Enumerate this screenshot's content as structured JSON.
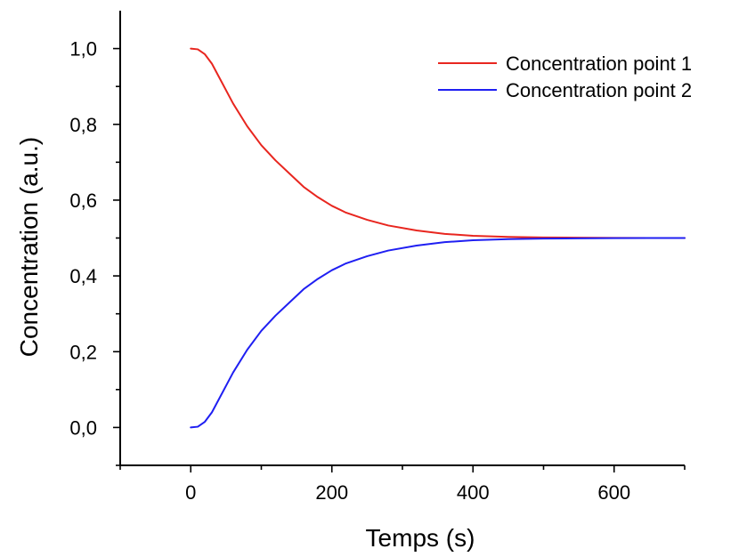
{
  "chart_data": {
    "type": "line",
    "title": "",
    "xlabel": "Temps (s)",
    "ylabel": "Concentration (a.u.)",
    "xlim": [
      -100,
      700
    ],
    "ylim": [
      -0.1,
      1.1
    ],
    "x_ticks": [
      0,
      200,
      400,
      600
    ],
    "x_tick_labels": [
      "0",
      "200",
      "400",
      "600"
    ],
    "x_minor_ticks": [
      -100,
      100,
      300,
      500,
      700
    ],
    "y_ticks": [
      0.0,
      0.2,
      0.4,
      0.6,
      0.8,
      1.0
    ],
    "y_tick_labels": [
      "0,0",
      "0,2",
      "0,4",
      "0,6",
      "0,8",
      "1,0"
    ],
    "y_minor_ticks": [
      -0.1,
      0.1,
      0.3,
      0.5,
      0.7,
      0.9
    ],
    "grid": false,
    "legend_position": "top-right",
    "series": [
      {
        "name": "Concentration point 1",
        "color": "#e8261f",
        "x": [
          0,
          10,
          20,
          30,
          40,
          60,
          80,
          100,
          120,
          140,
          160,
          180,
          200,
          220,
          250,
          280,
          320,
          360,
          400,
          450,
          500,
          550,
          600,
          650,
          700
        ],
        "y": [
          1.0,
          0.998,
          0.985,
          0.96,
          0.925,
          0.855,
          0.795,
          0.745,
          0.705,
          0.67,
          0.635,
          0.608,
          0.585,
          0.567,
          0.548,
          0.533,
          0.52,
          0.511,
          0.506,
          0.503,
          0.5015,
          0.5008,
          0.5004,
          0.5001,
          0.5
        ]
      },
      {
        "name": "Concentration point 2",
        "color": "#1f1ff2",
        "x": [
          0,
          10,
          20,
          30,
          40,
          60,
          80,
          100,
          120,
          140,
          160,
          180,
          200,
          220,
          250,
          280,
          320,
          360,
          400,
          450,
          500,
          550,
          600,
          650,
          700
        ],
        "y": [
          0.0,
          0.002,
          0.015,
          0.04,
          0.075,
          0.145,
          0.205,
          0.255,
          0.295,
          0.33,
          0.365,
          0.392,
          0.415,
          0.433,
          0.452,
          0.467,
          0.48,
          0.489,
          0.494,
          0.497,
          0.4985,
          0.4992,
          0.4996,
          0.4999,
          0.5
        ]
      }
    ]
  }
}
